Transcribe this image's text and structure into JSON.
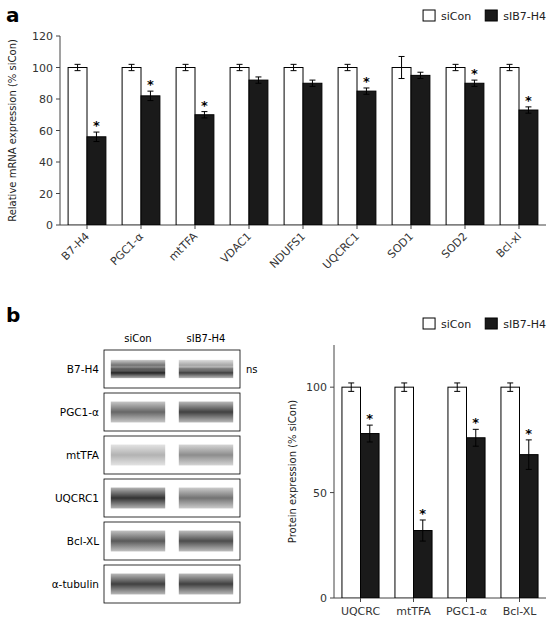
{
  "chart_data": [
    {
      "type": "bar",
      "title": "a",
      "categories": [
        "B7-H4",
        "PGC1-α",
        "mtTFA",
        "VDAC1",
        "NDUFS1",
        "UQCRC1",
        "SOD1",
        "SOD2",
        "Bcl-xl"
      ],
      "series": [
        {
          "name": "siCon",
          "color": "#ffffff",
          "values": [
            100,
            100,
            100,
            100,
            100,
            100,
            100,
            100,
            100
          ],
          "errors": [
            2,
            2,
            2,
            2,
            2,
            2,
            7,
            2,
            2
          ]
        },
        {
          "name": "sIB7-H4",
          "color": "#1a1a1a",
          "values": [
            56,
            82,
            70,
            92,
            90,
            85,
            95,
            90,
            73
          ],
          "errors": [
            3,
            3,
            2,
            2,
            2,
            2,
            2,
            2,
            2
          ]
        }
      ],
      "annotations": [
        {
          "text": "*",
          "series": 1,
          "index": 0
        },
        {
          "text": "*",
          "series": 1,
          "index": 1
        },
        {
          "text": "*",
          "series": 1,
          "index": 2
        },
        {
          "text": "*",
          "series": 1,
          "index": 5
        },
        {
          "text": "*",
          "series": 1,
          "index": 7
        },
        {
          "text": "*",
          "series": 1,
          "index": 8
        }
      ],
      "y_label": "Relative mRNA expression (% siCon)",
      "ylim": [
        0,
        120
      ],
      "yticks": [
        0,
        20,
        40,
        60,
        80,
        100,
        120
      ],
      "legend": "upper right"
    },
    {
      "type": "blot",
      "title": "b",
      "rows": [
        "B7-H4",
        "PGC1-α",
        "mtTFA",
        "UQCRC1",
        "Bcl-XL",
        "α-tubulin"
      ],
      "columns": [
        "siCon",
        "sIB7-H4"
      ],
      "bands": [
        [
          [
            0.85,
            0.55
          ],
          [
            0.75,
            0.35
          ]
        ],
        [
          [
            0.6
          ],
          [
            0.75
          ]
        ],
        [
          [
            0.3
          ],
          [
            0.45
          ]
        ],
        [
          [
            0.8
          ],
          [
            0.55
          ]
        ],
        [
          [
            0.65
          ],
          [
            0.7
          ]
        ],
        [
          [
            0.75
          ],
          [
            0.75
          ]
        ]
      ],
      "annotations": [
        {
          "text": "ns",
          "row": 0
        }
      ]
    },
    {
      "type": "bar",
      "categories": [
        "UQCRC",
        "mtTFA",
        "PGC1-α",
        "Bcl-XL"
      ],
      "series": [
        {
          "name": "siCon",
          "color": "#ffffff",
          "values": [
            100,
            100,
            100,
            100
          ],
          "errors": [
            2,
            2,
            2,
            2
          ]
        },
        {
          "name": "sIB7-H4",
          "color": "#1a1a1a",
          "values": [
            78,
            32,
            76,
            68
          ],
          "errors": [
            4,
            5,
            4,
            7
          ]
        }
      ],
      "annotations": [
        {
          "text": "*",
          "series": 1,
          "index": 0
        },
        {
          "text": "*",
          "series": 1,
          "index": 1
        },
        {
          "text": "*",
          "series": 1,
          "index": 2
        },
        {
          "text": "*",
          "series": 1,
          "index": 3
        }
      ],
      "y_label": "Protein expression (% siCon)",
      "ylim": [
        0,
        120
      ],
      "yticks": [
        0,
        50,
        100
      ],
      "legend": "upper right"
    }
  ]
}
